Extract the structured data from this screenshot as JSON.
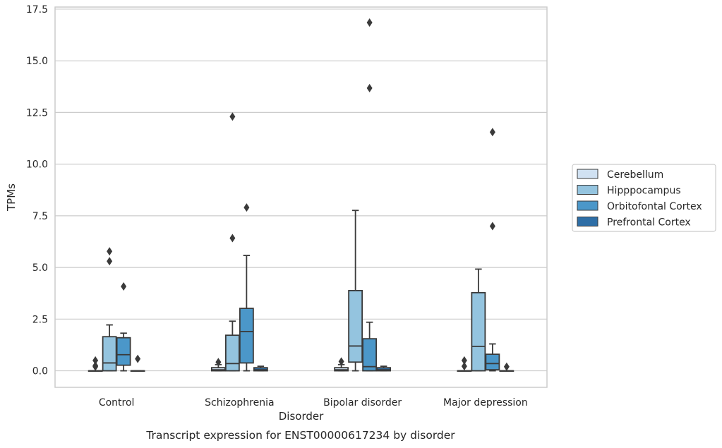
{
  "caption": "Transcript expression for ENST00000617234 by disorder",
  "chart_data": {
    "type": "box",
    "xlabel": "Disorder",
    "ylabel": "TPMs",
    "ylim": [
      -0.8,
      17.6
    ],
    "yticks": [
      "0.0",
      "2.5",
      "5.0",
      "7.5",
      "10.0",
      "12.5",
      "15.0",
      "17.5"
    ],
    "ytick_values": [
      0,
      2.5,
      5,
      7.5,
      10,
      12.5,
      15,
      17.5
    ],
    "grid": "horizontal",
    "legend_position": "right",
    "categories": [
      "Control",
      "Schizophrenia",
      "Bipolar disorder",
      "Major depression"
    ],
    "series": [
      {
        "name": "Cerebellum",
        "color": "#d0e1f2",
        "boxes": [
          {
            "whisker_low": 0,
            "q1": 0,
            "median": 0,
            "q3": 0,
            "whisker_high": 0,
            "outliers": [
              0.2,
              0.25,
              0.5
            ]
          },
          {
            "whisker_low": 0,
            "q1": 0,
            "median": 0.05,
            "q3": 0.15,
            "whisker_high": 0.3,
            "outliers": [
              0.42
            ]
          },
          {
            "whisker_low": 0,
            "q1": 0,
            "median": 0.05,
            "q3": 0.15,
            "whisker_high": 0.3,
            "outliers": [
              0.45
            ]
          },
          {
            "whisker_low": 0,
            "q1": 0,
            "median": 0,
            "q3": 0,
            "whisker_high": 0,
            "outliers": [
              0.22,
              0.5
            ]
          }
        ]
      },
      {
        "name": "Hipppocampus",
        "color": "#94c4df",
        "boxes": [
          {
            "whisker_low": 0,
            "q1": 0,
            "median": 0.38,
            "q3": 1.65,
            "whisker_high": 2.22,
            "outliers": [
              5.3,
              5.78
            ]
          },
          {
            "whisker_low": 0,
            "q1": 0,
            "median": 0.35,
            "q3": 1.72,
            "whisker_high": 2.4,
            "outliers": [
              6.42,
              12.3
            ]
          },
          {
            "whisker_low": 0,
            "q1": 0.42,
            "median": 1.2,
            "q3": 3.88,
            "whisker_high": 7.76,
            "outliers": []
          },
          {
            "whisker_low": 0,
            "q1": 0,
            "median": 1.18,
            "q3": 3.78,
            "whisker_high": 4.92,
            "outliers": []
          }
        ]
      },
      {
        "name": "Orbitofontal Cortex",
        "color": "#4b97c9",
        "boxes": [
          {
            "whisker_low": 0,
            "q1": 0.27,
            "median": 0.78,
            "q3": 1.6,
            "whisker_high": 1.82,
            "outliers": [
              4.08
            ]
          },
          {
            "whisker_low": 0,
            "q1": 0.38,
            "median": 1.9,
            "q3": 3.02,
            "whisker_high": 5.58,
            "outliers": [
              7.9
            ]
          },
          {
            "whisker_low": 0,
            "q1": 0,
            "median": 0.2,
            "q3": 1.55,
            "whisker_high": 2.35,
            "outliers": [
              13.68,
              16.85
            ]
          },
          {
            "whisker_low": 0,
            "q1": 0.05,
            "median": 0.35,
            "q3": 0.8,
            "whisker_high": 1.3,
            "outliers": [
              7.0,
              11.55
            ]
          }
        ]
      },
      {
        "name": "Prefrontal Cortex",
        "color": "#2e6ea6",
        "boxes": [
          {
            "whisker_low": 0,
            "q1": 0,
            "median": 0,
            "q3": 0,
            "whisker_high": 0,
            "outliers": [
              0.58
            ]
          },
          {
            "whisker_low": 0,
            "q1": 0,
            "median": 0.05,
            "q3": 0.15,
            "whisker_high": 0.22,
            "outliers": []
          },
          {
            "whisker_low": 0,
            "q1": 0,
            "median": 0.05,
            "q3": 0.15,
            "whisker_high": 0.22,
            "outliers": []
          },
          {
            "whisker_low": 0,
            "q1": 0,
            "median": 0,
            "q3": 0,
            "whisker_high": 0,
            "outliers": [
              0.2
            ]
          }
        ]
      }
    ]
  }
}
